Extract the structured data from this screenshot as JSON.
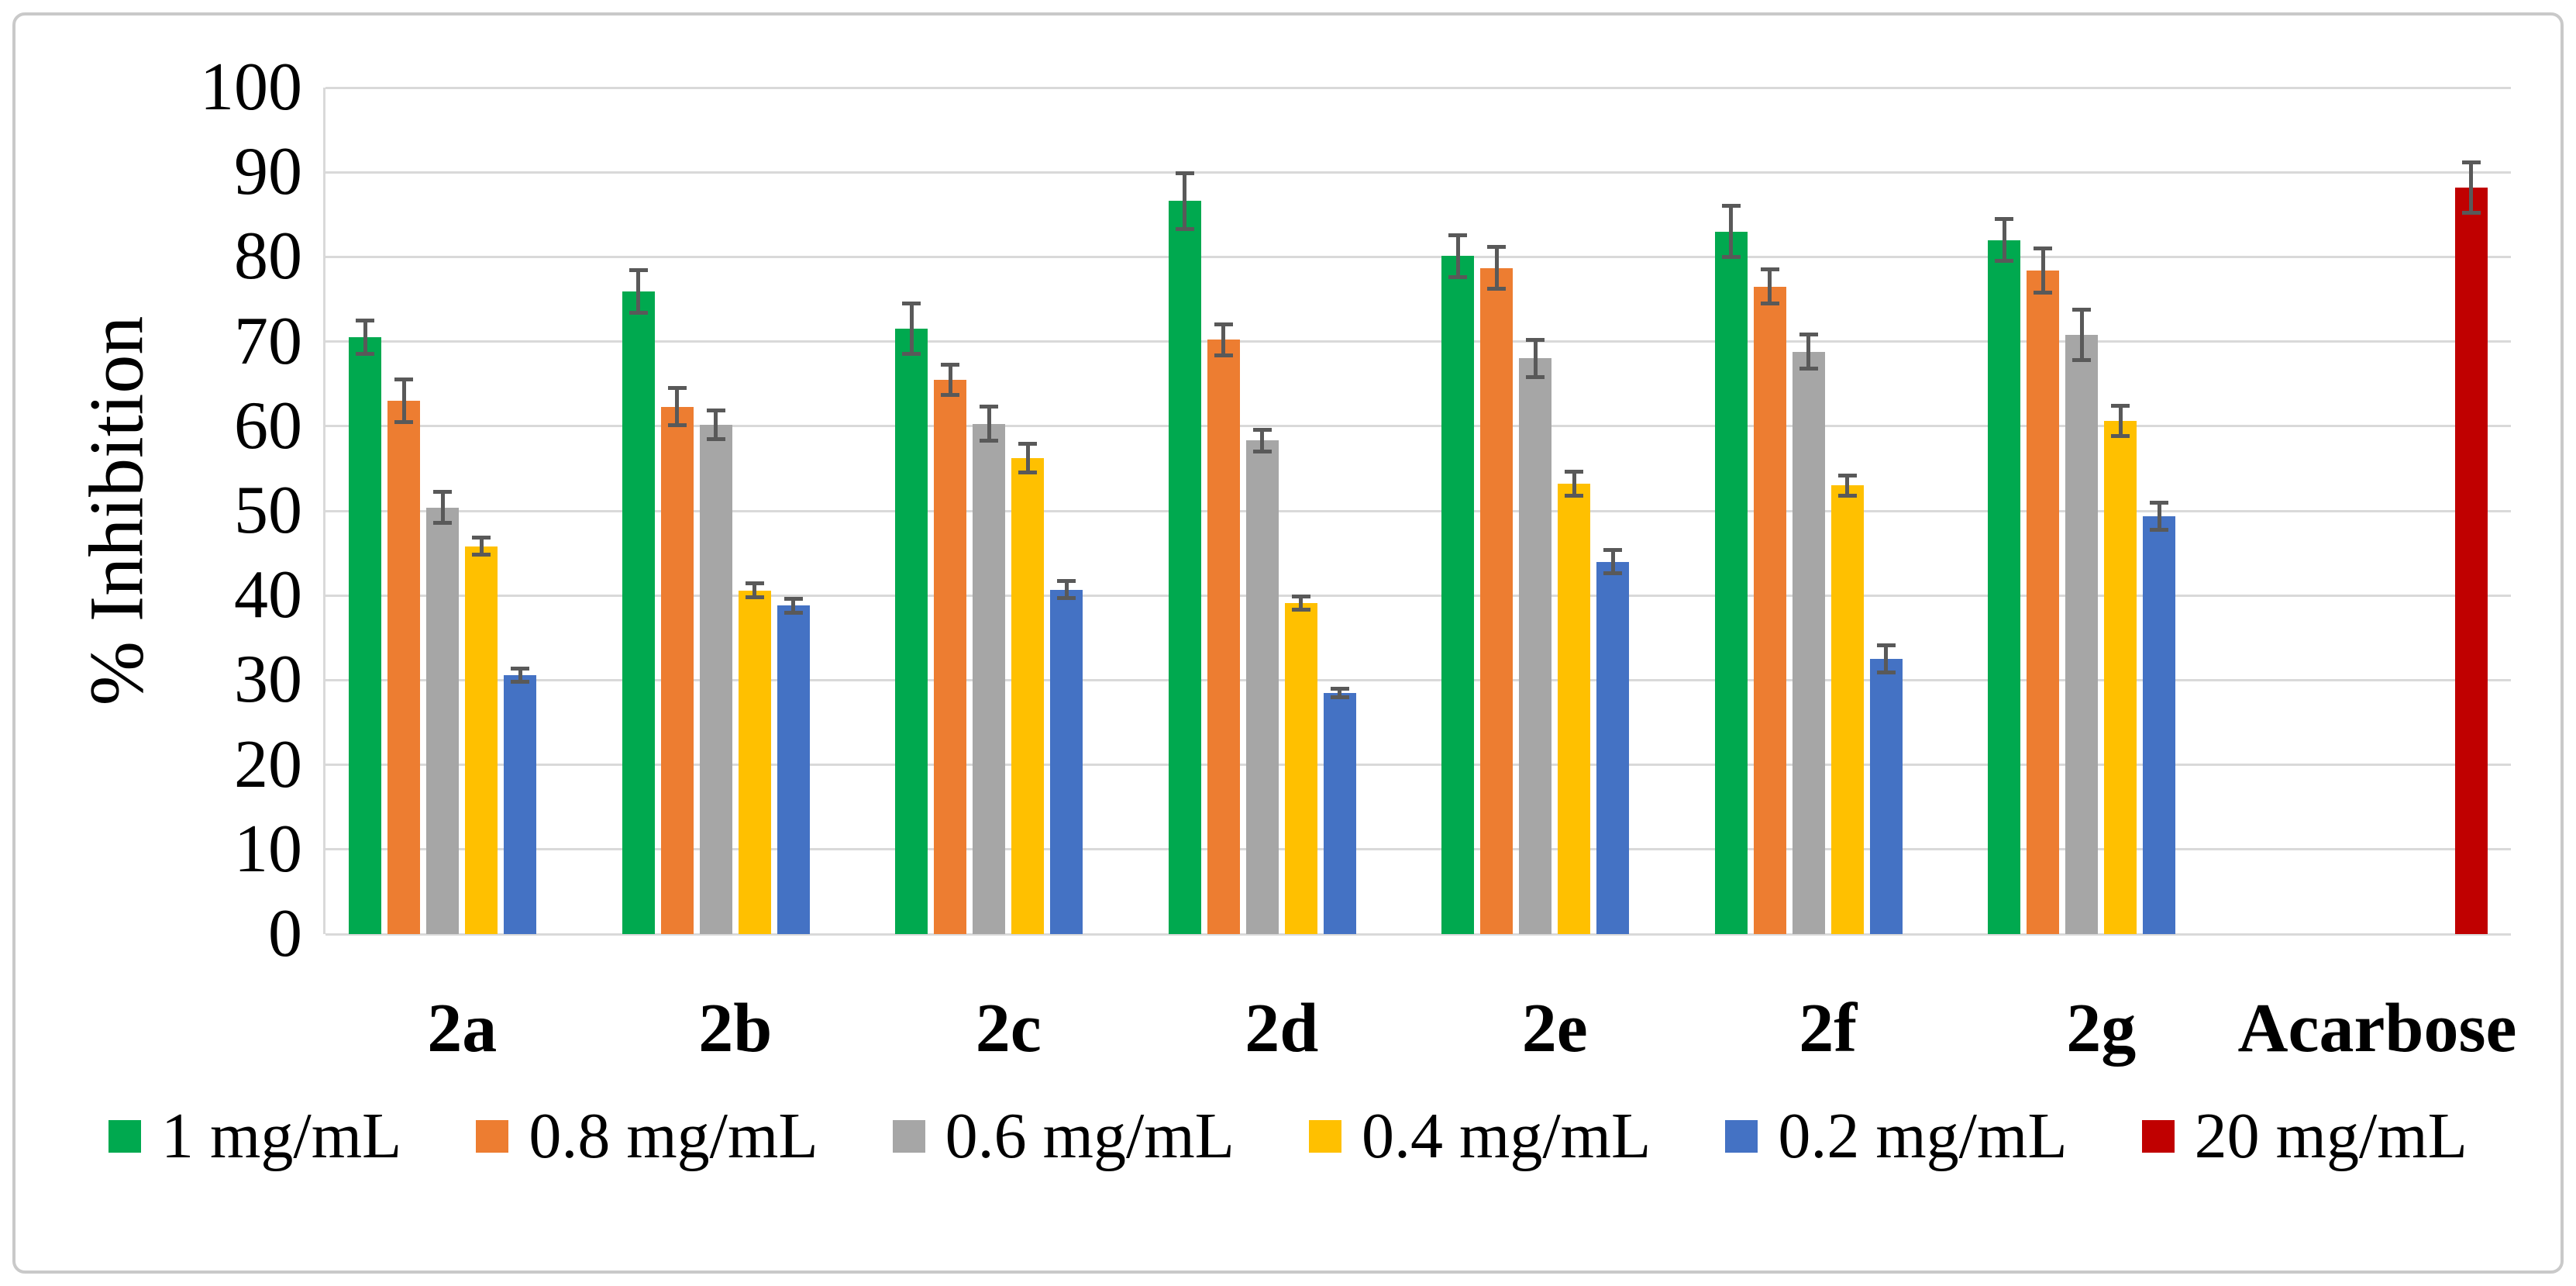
{
  "chart_data": {
    "type": "bar",
    "title": "",
    "xlabel": "",
    "ylabel": "% Inhibition",
    "ylim": [
      0,
      100
    ],
    "y_ticks": [
      0,
      10,
      20,
      30,
      40,
      50,
      60,
      70,
      80,
      90,
      100
    ],
    "grid": "horizontal",
    "legend_position": "bottom",
    "error_bars": true,
    "categories": [
      "2a",
      "2b",
      "2c",
      "2d",
      "2e",
      "2f",
      "2g",
      "Acarbose"
    ],
    "series": [
      {
        "name": "1 mg/mL",
        "color": "#00A94F",
        "values": [
          70.5,
          75.9,
          71.5,
          86.6,
          80.1,
          83.0,
          82.0,
          null
        ],
        "errors": [
          2.0,
          2.5,
          3.0,
          3.3,
          2.5,
          3.0,
          2.5,
          null
        ]
      },
      {
        "name": "0.8 mg/mL",
        "color": "#ED7D31",
        "values": [
          63.0,
          62.3,
          65.5,
          70.2,
          78.7,
          76.5,
          78.4,
          null
        ],
        "errors": [
          2.5,
          2.2,
          1.8,
          1.8,
          2.5,
          2.0,
          2.6,
          null
        ]
      },
      {
        "name": "0.6 mg/mL",
        "color": "#A6A6A6",
        "values": [
          50.4,
          60.2,
          60.3,
          58.3,
          68.0,
          68.8,
          70.8,
          null
        ],
        "errors": [
          1.8,
          1.7,
          2.0,
          1.3,
          2.2,
          2.0,
          3.0,
          null
        ]
      },
      {
        "name": "0.4 mg/mL",
        "color": "#FFC000",
        "values": [
          45.8,
          40.6,
          56.2,
          39.1,
          53.2,
          53.0,
          60.6,
          null
        ],
        "errors": [
          1.0,
          0.8,
          1.7,
          0.8,
          1.4,
          1.2,
          1.8,
          null
        ]
      },
      {
        "name": "0.2 mg/mL",
        "color": "#4472C4",
        "values": [
          30.6,
          38.8,
          40.7,
          28.5,
          44.0,
          32.5,
          49.4,
          null
        ],
        "errors": [
          0.8,
          0.8,
          1.0,
          0.5,
          1.4,
          1.6,
          1.6,
          null
        ]
      },
      {
        "name": "20 mg/mL",
        "color": "#C00000",
        "values": [
          null,
          null,
          null,
          null,
          null,
          null,
          null,
          88.2
        ],
        "errors": [
          null,
          null,
          null,
          null,
          null,
          null,
          null,
          3.0
        ]
      }
    ],
    "style": {
      "grid_color": "#d9d9d9",
      "error_bar_color": "#595959",
      "frame_border_color": "#c9c9c9",
      "text_color": "#000000",
      "background": "#ffffff"
    }
  }
}
